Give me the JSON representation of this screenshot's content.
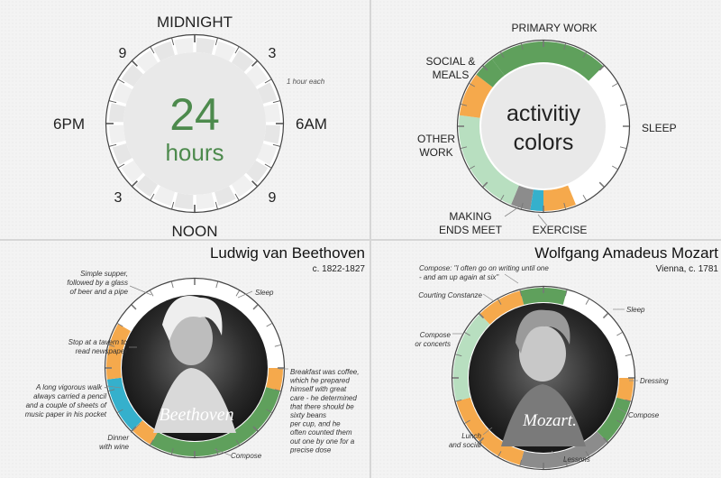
{
  "colors": {
    "primary_work": "#5fa05c",
    "social_meals": "#f5a94c",
    "other_work": "#b8dfc0",
    "making_ends_meet": "#8c8c8c",
    "exercise": "#35b0cc",
    "sleep": "#ffffff",
    "hour_tick": "#e6e6e6",
    "text_green": "#4d8a4d"
  },
  "chart_data": [
    {
      "type": "pie",
      "subtype": "24-hour clock legend",
      "center_number": "24",
      "center_unit": "hours",
      "hour_labels": {
        "top": "MIDNIGHT",
        "right": "6AM",
        "bottom": "NOON",
        "left": "6PM"
      },
      "diagonal_labels": {
        "top_left": "9",
        "top_right": "3",
        "bottom_left": "3",
        "bottom_right": "9"
      },
      "note": "1 hour each",
      "segments_hours": 24
    },
    {
      "type": "pie",
      "subtype": "activity color legend",
      "center_text_1": "activitiy",
      "center_text_2": "colors",
      "categories": [
        "PRIMARY WORK",
        "SLEEP",
        "EXERCISE",
        "MAKING ENDS MEET",
        "OTHER WORK",
        "SOCIAL & MEALS"
      ],
      "labels": {
        "primary_work": "PRIMARY WORK",
        "social_1": "SOCIAL &",
        "social_2": "MEALS",
        "sleep": "SLEEP",
        "other_1": "OTHER",
        "other_2": "WORK",
        "making_1": "MAKING",
        "making_2": "ENDS MEET",
        "exercise": "EXERCISE"
      },
      "segments": [
        {
          "category": "primary_work",
          "start": 21.5,
          "end": 3.0
        },
        {
          "category": "sleep",
          "start": 3.0,
          "end": 10.5
        },
        {
          "category": "social_meals",
          "start": 10.5,
          "end": 12.0
        },
        {
          "category": "exercise",
          "start": 12.0,
          "end": 12.6
        },
        {
          "category": "making_ends_meet",
          "start": 12.6,
          "end": 13.5
        },
        {
          "category": "other_work",
          "start": 13.5,
          "end": 18.5
        },
        {
          "category": "social_meals",
          "start": 18.5,
          "end": 20.5
        },
        {
          "category": "primary_work",
          "start": 20.5,
          "end": 21.5
        }
      ]
    },
    {
      "type": "pie",
      "subtype": "daily routine",
      "title": "Ludwig van Beethoven",
      "subtitle": "c. 1822-1827",
      "signature": "Beethoven",
      "segments": [
        {
          "category": "sleep",
          "start": 22.0,
          "end": 6.0
        },
        {
          "category": "social_meals",
          "start": 6.0,
          "end": 7.0
        },
        {
          "category": "primary_work",
          "start": 7.0,
          "end": 14.0
        },
        {
          "category": "social_meals",
          "start": 14.0,
          "end": 15.0
        },
        {
          "category": "exercise",
          "start": 15.0,
          "end": 17.5
        },
        {
          "category": "social_meals",
          "start": 17.5,
          "end": 20.0
        },
        {
          "category": "sleep",
          "start": 20.0,
          "end": 22.0
        }
      ],
      "annotations": {
        "a1": [
          "Simple supper,",
          "followed by a glass",
          "of beer and a pipe"
        ],
        "a2": [
          "Stop at a tavern to",
          "read newspaper"
        ],
        "a3": [
          "A long vigorous walk -",
          "always carried a pencil",
          "and a couple of sheets of",
          "music paper in his pocket"
        ],
        "a4": [
          "Dinner",
          "with wine"
        ],
        "a5": [
          "Sleep"
        ],
        "a6": [
          "Breakfast was coffee,",
          "which he prepared",
          "himself with great",
          "care - he determined",
          "that there should be",
          "sixty beans",
          "per cup, and he",
          "often counted them",
          "out one by one for a",
          "precise dose"
        ],
        "a7": [
          "Compose"
        ]
      }
    },
    {
      "type": "pie",
      "subtype": "daily routine",
      "title": "Wolfgang Amadeus Mozart",
      "subtitle": "Vienna, c. 1781",
      "signature": "Mozart.",
      "segments": [
        {
          "category": "sleep",
          "start": 1.0,
          "end": 6.0
        },
        {
          "category": "social_meals",
          "start": 6.0,
          "end": 7.0
        },
        {
          "category": "primary_work",
          "start": 7.0,
          "end": 9.0
        },
        {
          "category": "making_ends_meet",
          "start": 9.0,
          "end": 13.0
        },
        {
          "category": "social_meals",
          "start": 13.0,
          "end": 17.0
        },
        {
          "category": "other_work",
          "start": 17.0,
          "end": 21.0
        },
        {
          "category": "social_meals",
          "start": 21.0,
          "end": 23.0
        },
        {
          "category": "primary_work",
          "start": 23.0,
          "end": 1.0
        }
      ],
      "annotations": {
        "b1": [
          "Compose: \"I often go on writing until one",
          "- and am up again at six\""
        ],
        "b2": [
          "Courting Constanze"
        ],
        "b3": [
          "Compose",
          "or concerts"
        ],
        "b4": [
          "Sleep"
        ],
        "b5": [
          "Dressing"
        ],
        "b6": [
          "Compose"
        ],
        "b7": [
          "Lunch",
          "and social"
        ],
        "b8": [
          "Lessons"
        ]
      }
    }
  ]
}
